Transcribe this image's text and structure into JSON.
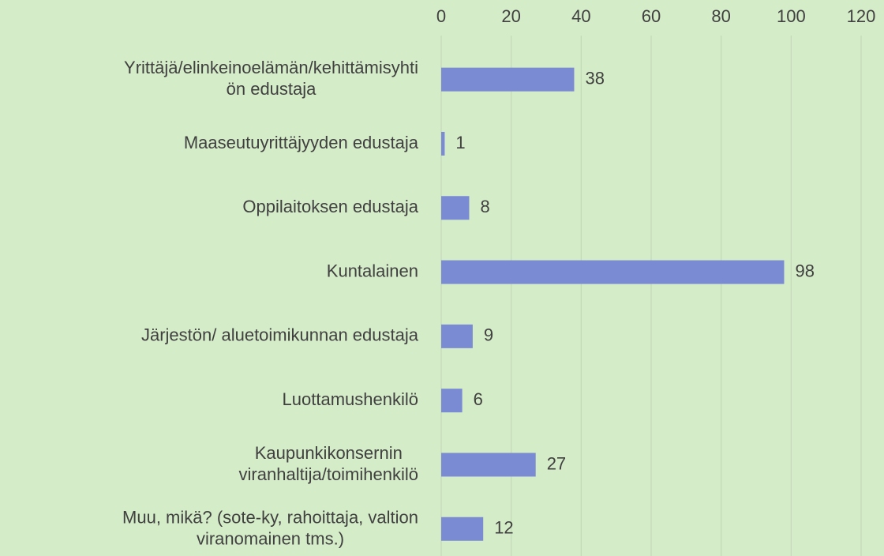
{
  "chart_data": {
    "type": "barh",
    "categories": [
      "Yrittäjä/elinkeinoelämän/kehittämisyhti\nön edustaja",
      "Maaseutuyrittäjyyden edustaja",
      "Oppilaitoksen edustaja",
      "Kuntalainen",
      "Järjestön/ aluetoimikunnan edustaja",
      "Luottamushenkilö",
      "Kaupunkikonsernin\nviranhaltija/toimihenkilö",
      "Muu, mikä? (sote-ky, rahoittaja, valtion\nviranomainen tms.)"
    ],
    "values": [
      38,
      1,
      8,
      98,
      9,
      6,
      27,
      12
    ],
    "color": "#7b8bd3",
    "xlim": [
      0,
      120
    ],
    "xticks": [
      0,
      20,
      40,
      60,
      80,
      100,
      120
    ],
    "grid": true
  }
}
